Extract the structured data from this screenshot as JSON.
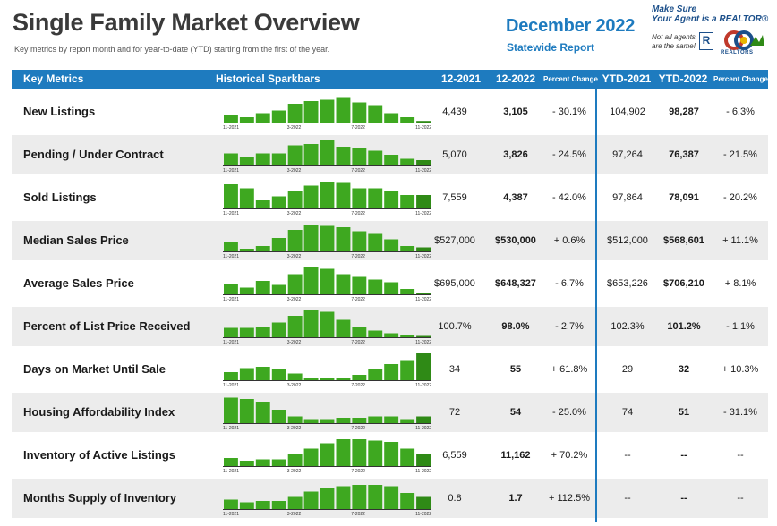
{
  "header": {
    "title": "Single Family Market Overview",
    "subtitle": "Key metrics by report month and for year-to-date (YTD) starting from the first of the year.",
    "month": "December 2022",
    "report": "Statewide Report",
    "tagline_1": "Make Sure",
    "tagline_2": "Your Agent is a REALTOR®",
    "note_1": "Not all agents",
    "note_2": "are the same!",
    "realtor_mark": "R",
    "logo_word": "REALTORS"
  },
  "columns": {
    "metric": "Key Metrics",
    "spark": "Historical Sparkbars",
    "prev": "12-2021",
    "curr": "12-2022",
    "pct": "Percent Change",
    "ytd_prev": "YTD-2021",
    "ytd_curr": "YTD-2022",
    "ytd_pct": "Percent Change"
  },
  "tick_labels": [
    "11-2021",
    "3-2022",
    "7-2022",
    "11-2022"
  ],
  "colors": {
    "accent": "#1e7bbf",
    "bar": "#3ea820",
    "row_shade": "#ececec"
  },
  "rows": [
    {
      "metric": "New Listings",
      "prev": "4,439",
      "curr": "3,105",
      "pct": "- 30.1%",
      "ytd_prev": "104,902",
      "ytd_curr": "98,287",
      "ytd_pct": "- 6.3%",
      "spark": [
        0.3,
        0.2,
        0.35,
        0.45,
        0.7,
        0.8,
        0.85,
        0.95,
        0.75,
        0.65,
        0.35,
        0.2,
        0.06
      ]
    },
    {
      "metric": "Pending / Under Contract",
      "prev": "5,070",
      "curr": "3,826",
      "pct": "- 24.5%",
      "ytd_prev": "97,264",
      "ytd_curr": "76,387",
      "ytd_pct": "- 21.5%",
      "spark": [
        0.45,
        0.3,
        0.45,
        0.45,
        0.75,
        0.8,
        0.95,
        0.7,
        0.65,
        0.55,
        0.4,
        0.25,
        0.2
      ]
    },
    {
      "metric": "Sold Listings",
      "prev": "7,559",
      "curr": "4,387",
      "pct": "- 42.0%",
      "ytd_prev": "97,864",
      "ytd_curr": "78,091",
      "ytd_pct": "- 20.2%",
      "spark": [
        0.9,
        0.75,
        0.3,
        0.45,
        0.65,
        0.85,
        1.0,
        0.95,
        0.75,
        0.75,
        0.65,
        0.5,
        0.5
      ]
    },
    {
      "metric": "Median Sales Price",
      "prev": "$527,000",
      "curr": "$530,000",
      "pct": "+ 0.6%",
      "ytd_prev": "$512,000",
      "ytd_curr": "$568,601",
      "ytd_pct": "+ 11.1%",
      "spark": [
        0.35,
        0.1,
        0.2,
        0.5,
        0.8,
        1.0,
        0.95,
        0.9,
        0.75,
        0.65,
        0.45,
        0.2,
        0.15
      ]
    },
    {
      "metric": "Average Sales Price",
      "prev": "$695,000",
      "curr": "$648,327",
      "pct": "- 6.7%",
      "ytd_prev": "$653,226",
      "ytd_curr": "$706,210",
      "ytd_pct": "+ 8.1%",
      "spark": [
        0.4,
        0.25,
        0.5,
        0.35,
        0.75,
        1.0,
        0.95,
        0.75,
        0.65,
        0.55,
        0.45,
        0.2,
        0.05
      ]
    },
    {
      "metric": "Percent of List Price Received",
      "prev": "100.7%",
      "curr": "98.0%",
      "pct": "- 2.7%",
      "ytd_prev": "102.3%",
      "ytd_curr": "101.2%",
      "ytd_pct": "- 1.1%",
      "spark": [
        0.35,
        0.35,
        0.4,
        0.55,
        0.8,
        1.0,
        0.95,
        0.65,
        0.4,
        0.25,
        0.15,
        0.1,
        0.05
      ]
    },
    {
      "metric": "Days on Market Until Sale",
      "prev": "34",
      "curr": "55",
      "pct": "+ 61.8%",
      "ytd_prev": "29",
      "ytd_curr": "32",
      "ytd_pct": "+ 10.3%",
      "spark": [
        0.3,
        0.45,
        0.5,
        0.4,
        0.25,
        0.1,
        0.1,
        0.1,
        0.2,
        0.4,
        0.6,
        0.75,
        1.0
      ]
    },
    {
      "metric": "Housing Affordability Index",
      "prev": "72",
      "curr": "54",
      "pct": "- 25.0%",
      "ytd_prev": "74",
      "ytd_curr": "51",
      "ytd_pct": "- 31.1%",
      "spark": [
        0.95,
        0.9,
        0.8,
        0.5,
        0.25,
        0.15,
        0.15,
        0.2,
        0.2,
        0.25,
        0.25,
        0.15,
        0.25
      ]
    },
    {
      "metric": "Inventory of Active Listings",
      "prev": "6,559",
      "curr": "11,162",
      "pct": "+ 70.2%",
      "ytd_prev": "--",
      "ytd_curr": "--",
      "ytd_pct": "--",
      "spark": [
        0.3,
        0.2,
        0.25,
        0.25,
        0.45,
        0.65,
        0.85,
        1.0,
        1.0,
        0.95,
        0.9,
        0.65,
        0.45
      ]
    },
    {
      "metric": "Months Supply of Inventory",
      "prev": "0.8",
      "curr": "1.7",
      "pct": "+ 112.5%",
      "ytd_prev": "--",
      "ytd_curr": "--",
      "ytd_pct": "--",
      "spark": [
        0.35,
        0.25,
        0.3,
        0.3,
        0.45,
        0.65,
        0.8,
        0.85,
        0.9,
        0.9,
        0.85,
        0.6,
        0.45
      ]
    }
  ]
}
